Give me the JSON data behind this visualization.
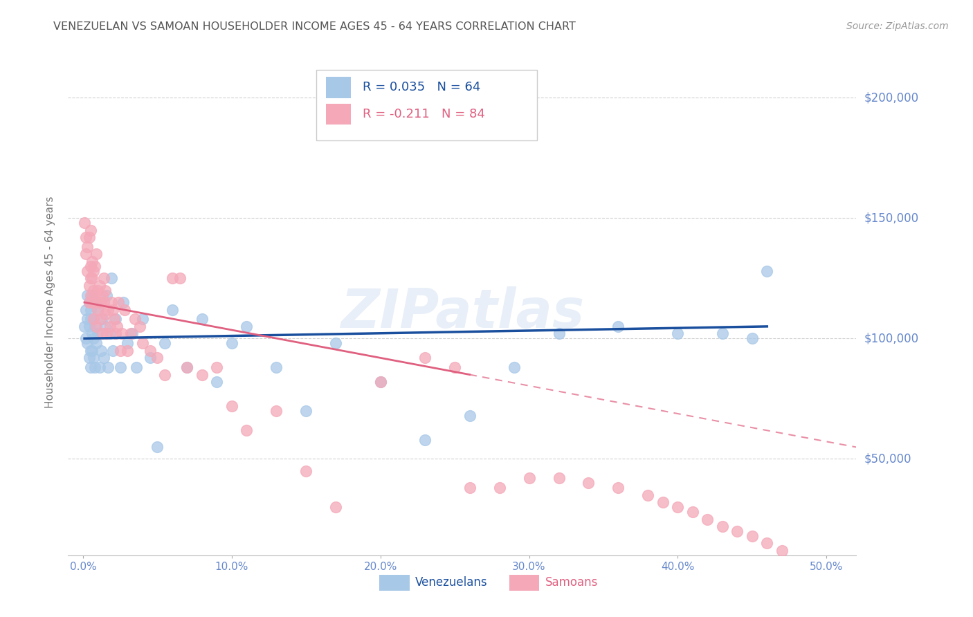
{
  "title": "VENEZUELAN VS SAMOAN HOUSEHOLDER INCOME AGES 45 - 64 YEARS CORRELATION CHART",
  "source": "Source: ZipAtlas.com",
  "ylabel": "Householder Income Ages 45 - 64 years",
  "xlabel_ticks": [
    "0.0%",
    "10.0%",
    "20.0%",
    "30.0%",
    "40.0%",
    "50.0%"
  ],
  "xlabel_vals": [
    0.0,
    0.1,
    0.2,
    0.3,
    0.4,
    0.5
  ],
  "ytick_vals": [
    50000,
    100000,
    150000,
    200000
  ],
  "ytick_labels": [
    "$50,000",
    "$100,000",
    "$150,000",
    "$200,000"
  ],
  "xlim": [
    -0.01,
    0.52
  ],
  "ylim": [
    10000,
    220000
  ],
  "venezuelan_R": "0.035",
  "venezuelan_N": "64",
  "samoan_R": "-0.211",
  "samoan_N": "84",
  "venezuelan_color": "#a8c8e8",
  "samoan_color": "#f4a8b8",
  "venezuelan_line_color": "#1a4f9e",
  "samoan_line_color": "#e06080",
  "background_color": "#ffffff",
  "grid_color": "#cccccc",
  "title_color": "#555555",
  "source_color": "#999999",
  "axis_tick_color": "#6688cc",
  "watermark_text": "ZIPatlas",
  "venezuelan_x": [
    0.001,
    0.002,
    0.002,
    0.003,
    0.003,
    0.003,
    0.004,
    0.004,
    0.004,
    0.005,
    0.005,
    0.005,
    0.005,
    0.006,
    0.006,
    0.006,
    0.007,
    0.007,
    0.007,
    0.008,
    0.008,
    0.009,
    0.009,
    0.01,
    0.01,
    0.011,
    0.012,
    0.013,
    0.014,
    0.015,
    0.016,
    0.017,
    0.018,
    0.019,
    0.02,
    0.022,
    0.025,
    0.027,
    0.03,
    0.033,
    0.036,
    0.04,
    0.045,
    0.05,
    0.055,
    0.06,
    0.07,
    0.08,
    0.09,
    0.1,
    0.11,
    0.13,
    0.15,
    0.17,
    0.2,
    0.23,
    0.26,
    0.29,
    0.32,
    0.36,
    0.4,
    0.43,
    0.45,
    0.46
  ],
  "venezuelan_y": [
    105000,
    100000,
    112000,
    98000,
    108000,
    118000,
    92000,
    105000,
    115000,
    95000,
    108000,
    112000,
    88000,
    102000,
    118000,
    95000,
    100000,
    108000,
    92000,
    105000,
    88000,
    115000,
    98000,
    102000,
    112000,
    88000,
    95000,
    108000,
    92000,
    105000,
    118000,
    88000,
    102000,
    125000,
    95000,
    108000,
    88000,
    115000,
    98000,
    102000,
    88000,
    108000,
    92000,
    55000,
    98000,
    112000,
    88000,
    108000,
    82000,
    98000,
    105000,
    88000,
    70000,
    98000,
    82000,
    58000,
    68000,
    88000,
    102000,
    105000,
    102000,
    102000,
    100000,
    128000
  ],
  "samoan_x": [
    0.001,
    0.002,
    0.002,
    0.003,
    0.003,
    0.004,
    0.004,
    0.004,
    0.005,
    0.005,
    0.005,
    0.005,
    0.006,
    0.006,
    0.006,
    0.007,
    0.007,
    0.007,
    0.008,
    0.008,
    0.008,
    0.009,
    0.009,
    0.01,
    0.01,
    0.011,
    0.011,
    0.012,
    0.012,
    0.013,
    0.013,
    0.014,
    0.014,
    0.015,
    0.015,
    0.016,
    0.017,
    0.018,
    0.019,
    0.02,
    0.021,
    0.022,
    0.023,
    0.024,
    0.025,
    0.026,
    0.028,
    0.03,
    0.032,
    0.035,
    0.038,
    0.04,
    0.045,
    0.05,
    0.055,
    0.06,
    0.065,
    0.07,
    0.08,
    0.09,
    0.1,
    0.11,
    0.13,
    0.15,
    0.17,
    0.2,
    0.23,
    0.25,
    0.26,
    0.28,
    0.3,
    0.32,
    0.34,
    0.36,
    0.38,
    0.39,
    0.4,
    0.41,
    0.42,
    0.43,
    0.44,
    0.45,
    0.46,
    0.47
  ],
  "samoan_y": [
    148000,
    142000,
    135000,
    128000,
    138000,
    122000,
    142000,
    115000,
    130000,
    125000,
    145000,
    118000,
    132000,
    115000,
    125000,
    120000,
    128000,
    108000,
    118000,
    130000,
    115000,
    105000,
    135000,
    120000,
    112000,
    115000,
    122000,
    108000,
    115000,
    102000,
    118000,
    115000,
    125000,
    110000,
    120000,
    102000,
    112000,
    105000,
    115000,
    112000,
    108000,
    102000,
    105000,
    115000,
    95000,
    102000,
    112000,
    95000,
    102000,
    108000,
    105000,
    98000,
    95000,
    92000,
    85000,
    125000,
    125000,
    88000,
    85000,
    88000,
    72000,
    62000,
    70000,
    45000,
    30000,
    82000,
    92000,
    88000,
    38000,
    38000,
    42000,
    42000,
    40000,
    38000,
    35000,
    32000,
    30000,
    28000,
    25000,
    22000,
    20000,
    18000,
    15000,
    12000
  ],
  "ven_trend_x": [
    0.001,
    0.46
  ],
  "ven_trend_y": [
    100000,
    105000
  ],
  "sam_trend_x": [
    0.001,
    0.26
  ],
  "sam_trend_y": [
    115000,
    85000
  ]
}
